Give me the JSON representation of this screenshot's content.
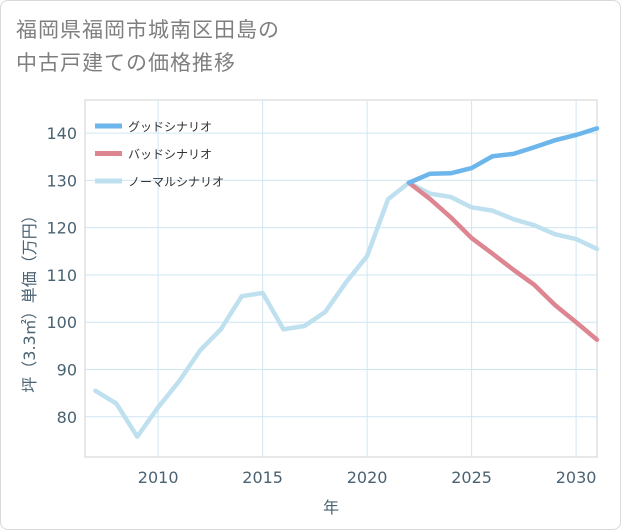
{
  "title": {
    "line1": "福岡県福岡市城南区田島の",
    "line2": "中古戸建ての価格推移"
  },
  "chart_data": {
    "type": "line",
    "title": "福岡県福岡市城南区田島の中古戸建ての価格推移",
    "xlabel": "年",
    "ylabel": "坪（3.3㎡）単価（万円）",
    "xlim": [
      2006.5,
      2031
    ],
    "ylim": [
      71.5,
      147
    ],
    "xticks": [
      2010,
      2015,
      2020,
      2025,
      2030
    ],
    "yticks": [
      80,
      90,
      100,
      110,
      120,
      130,
      140
    ],
    "grid": true,
    "legend_position": "top-left",
    "series": [
      {
        "name": "グッドシナリオ",
        "color": "#6cb6eb",
        "x": [
          2022,
          2023,
          2024,
          2025,
          2026,
          2027,
          2028,
          2029,
          2030,
          2031
        ],
        "values": [
          129.5,
          131.4,
          131.5,
          132.6,
          135.1,
          135.6,
          137.0,
          138.5,
          139.6,
          141.0
        ]
      },
      {
        "name": "バッドシナリオ",
        "color": "#dd8691",
        "x": [
          2022,
          2023,
          2024,
          2025,
          2026,
          2027,
          2028,
          2029,
          2030,
          2031
        ],
        "values": [
          129.5,
          126.1,
          122.2,
          117.8,
          114.5,
          111.1,
          107.9,
          103.6,
          100.0,
          96.3
        ]
      },
      {
        "name": "ノーマルシナリオ",
        "color": "#bfe0ee",
        "x": [
          2007,
          2008,
          2009,
          2010,
          2011,
          2012,
          2013,
          2014,
          2015,
          2016,
          2017,
          2018,
          2019,
          2020,
          2021,
          2022,
          2023,
          2024,
          2025,
          2026,
          2027,
          2028,
          2029,
          2030,
          2031
        ],
        "values": [
          85.5,
          82.8,
          75.8,
          82.0,
          87.5,
          94.0,
          98.5,
          105.5,
          106.2,
          98.5,
          99.2,
          102.2,
          108.5,
          114.0,
          126.0,
          129.5,
          127.2,
          126.5,
          124.3,
          123.6,
          121.8,
          120.5,
          118.6,
          117.6,
          115.5
        ]
      }
    ]
  }
}
